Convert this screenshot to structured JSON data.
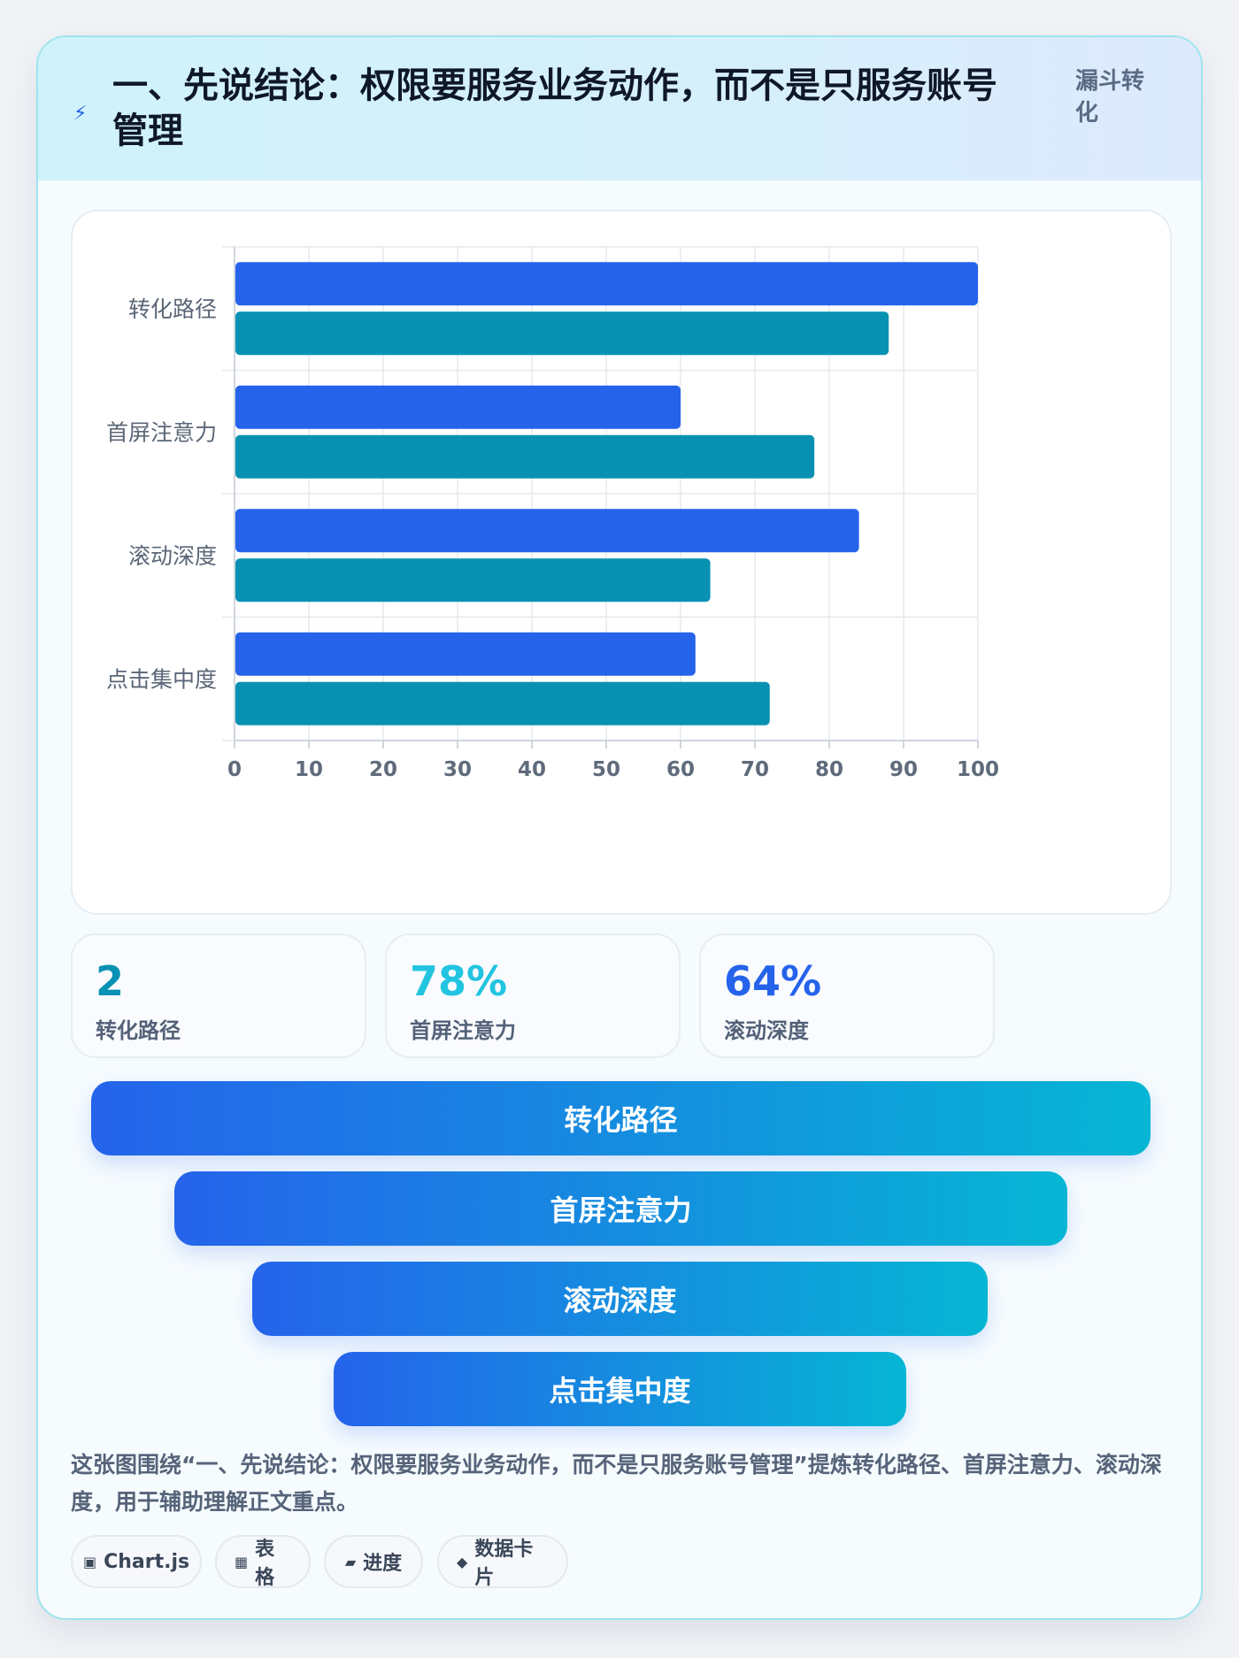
{
  "header": {
    "icon": "bolt-icon",
    "title": "一、先说结论：权限要服务业务动作，而不是只服务账号管理",
    "tag": "漏斗转化"
  },
  "chart_data": {
    "type": "bar",
    "orientation": "horizontal",
    "categories": [
      "转化路径",
      "首屏注意力",
      "滚动深度",
      "点击集中度"
    ],
    "series": [
      {
        "values": [
          100,
          60,
          84,
          62
        ],
        "color": "#2563eb"
      },
      {
        "values": [
          88,
          78,
          64,
          72
        ],
        "color": "#0891b2"
      }
    ],
    "xlim": [
      0,
      100
    ],
    "xticks": [
      0,
      10,
      20,
      30,
      40,
      50,
      60,
      70,
      80,
      90,
      100
    ],
    "grid": true
  },
  "stats": [
    {
      "value": "2",
      "label": "转化路径",
      "color": "#0891b2"
    },
    {
      "value": "78%",
      "label": "首屏注意力",
      "color": "#22c4e0"
    },
    {
      "value": "64%",
      "label": "滚动深度",
      "color": "#2563eb"
    }
  ],
  "funnel": [
    "转化路径",
    "首屏注意力",
    "滚动深度",
    "点击集中度"
  ],
  "caption": "这张图围绕“一、先说结论：权限要服务业务动作，而不是只服务账号管理”提炼转化路径、首屏注意力、滚动深度，用于辅助理解正文重点。",
  "chips": [
    {
      "icon": "▣",
      "label": "Chart.js"
    },
    {
      "icon": "▦",
      "label": "表格"
    },
    {
      "icon": "▰",
      "label": "进度"
    },
    {
      "icon": "◆",
      "label": "数据卡片"
    }
  ]
}
